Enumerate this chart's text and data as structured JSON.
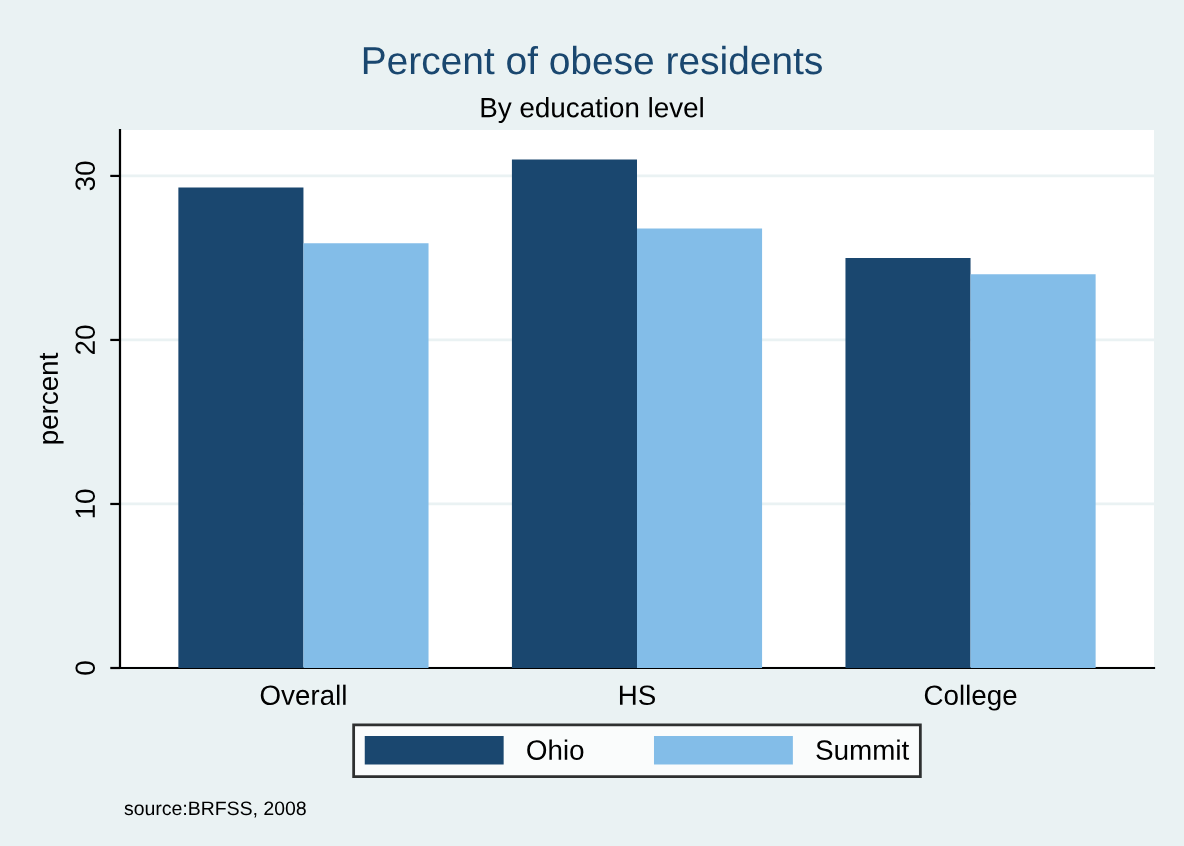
{
  "chart_data": {
    "type": "bar",
    "title": "Percent of obese residents",
    "subtitle": "By education level",
    "ylabel": "percent",
    "categories": [
      "Overall",
      "HS",
      "College"
    ],
    "series": [
      {
        "name": "Ohio",
        "color": "#1a476f",
        "values": [
          29.3,
          31.0,
          25.0
        ]
      },
      {
        "name": "Summit",
        "color": "#83bde8",
        "values": [
          25.9,
          26.8,
          24.0
        ]
      }
    ],
    "ylim": [
      0,
      32.8
    ],
    "yticks": [
      0,
      10,
      20,
      30
    ],
    "grid": "y",
    "legend": "bottom",
    "annotations": [
      "source:BRFSS, 2008"
    ]
  }
}
